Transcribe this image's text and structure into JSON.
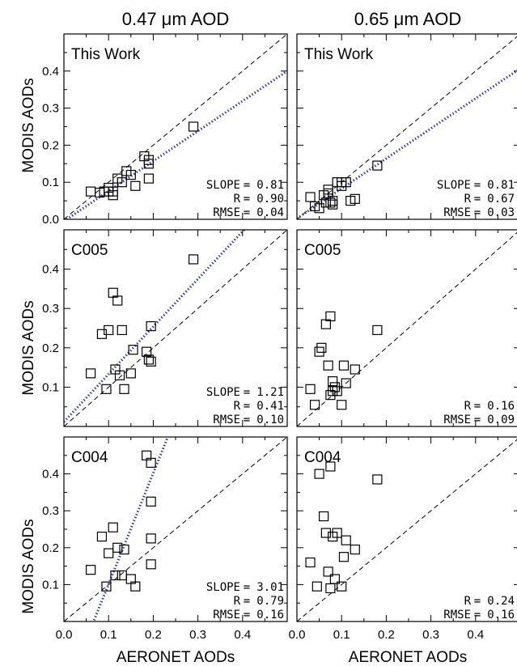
{
  "figure": {
    "column_titles": [
      "0.47 μm AOD",
      "0.65 μm AOD"
    ],
    "ylabel": "MODIS AODs",
    "xlabel": "AERONET AODs",
    "x_ticks": [
      "0.0",
      "0.1",
      "0.2",
      "0.3",
      "0.4"
    ],
    "y_ticks": [
      "0.0",
      "0.1",
      "0.2",
      "0.3",
      "0.4"
    ],
    "colors": {
      "fit_line": "#3a3aa6",
      "one_to_one": "#000000",
      "marker": "#000000"
    }
  },
  "chart_data": [
    {
      "type": "scatter",
      "panel": "This Work",
      "column": "0.47 μm AOD",
      "xlim": [
        0.0,
        0.5
      ],
      "ylim": [
        0.0,
        0.5
      ],
      "y_ticks": [
        0.0,
        0.1,
        0.2,
        0.3,
        0.4
      ],
      "stats": [
        {
          "label": "SLOPE",
          "value": "0.81"
        },
        {
          "label": "R",
          "value": "0.90"
        },
        {
          "label": "RMSE",
          "value": "0.04"
        }
      ],
      "fit": {
        "slope": 0.81,
        "intercept": -0.005
      },
      "x": [
        0.06,
        0.08,
        0.09,
        0.1,
        0.1,
        0.11,
        0.11,
        0.12,
        0.13,
        0.14,
        0.15,
        0.16,
        0.18,
        0.19,
        0.19,
        0.19,
        0.29
      ],
      "y": [
        0.075,
        0.072,
        0.075,
        0.085,
        0.075,
        0.065,
        0.075,
        0.11,
        0.1,
        0.13,
        0.12,
        0.09,
        0.17,
        0.16,
        0.15,
        0.11,
        0.25
      ]
    },
    {
      "type": "scatter",
      "panel": "This Work",
      "column": "0.65 μm AOD",
      "xlim": [
        0.0,
        0.5
      ],
      "ylim": [
        0.0,
        0.5
      ],
      "y_ticks": [
        0.0,
        0.1,
        0.2,
        0.3,
        0.4
      ],
      "stats": [
        {
          "label": "SLOPE",
          "value": "0.81"
        },
        {
          "label": "R",
          "value": "0.67"
        },
        {
          "label": "RMSE",
          "value": "0.03"
        }
      ],
      "fit": {
        "slope": 0.81,
        "intercept": 0.002
      },
      "x": [
        0.03,
        0.04,
        0.05,
        0.06,
        0.065,
        0.07,
        0.07,
        0.075,
        0.08,
        0.08,
        0.09,
        0.1,
        0.1,
        0.11,
        0.12,
        0.13,
        0.18
      ],
      "y": [
        0.06,
        0.035,
        0.03,
        0.065,
        0.045,
        0.07,
        0.08,
        0.045,
        0.04,
        0.05,
        0.1,
        0.09,
        0.1,
        0.1,
        0.05,
        0.055,
        0.145
      ]
    },
    {
      "type": "scatter",
      "panel": "C005",
      "column": "0.47 μm AOD",
      "xlim": [
        0.0,
        0.5
      ],
      "ylim": [
        0.0,
        0.5
      ],
      "y_ticks": [
        0.1,
        0.2,
        0.3,
        0.4
      ],
      "stats": [
        {
          "label": "SLOPE",
          "value": "1.21"
        },
        {
          "label": "R",
          "value": "0.41"
        },
        {
          "label": "RMSE",
          "value": "0.10"
        }
      ],
      "fit": {
        "slope": 1.21,
        "intercept": 0.012
      },
      "x": [
        0.06,
        0.085,
        0.095,
        0.1,
        0.11,
        0.115,
        0.12,
        0.125,
        0.13,
        0.135,
        0.15,
        0.155,
        0.185,
        0.19,
        0.195,
        0.195,
        0.29
      ],
      "y": [
        0.135,
        0.235,
        0.095,
        0.245,
        0.34,
        0.145,
        0.32,
        0.13,
        0.245,
        0.095,
        0.135,
        0.195,
        0.19,
        0.17,
        0.255,
        0.165,
        0.425
      ]
    },
    {
      "type": "scatter",
      "panel": "C005",
      "column": "0.65 μm AOD",
      "xlim": [
        0.0,
        0.5
      ],
      "ylim": [
        0.0,
        0.5
      ],
      "y_ticks": [
        0.1,
        0.2,
        0.3,
        0.4
      ],
      "stats": [
        {
          "label": "R",
          "value": "0.16"
        },
        {
          "label": "RMSE",
          "value": "0.09"
        }
      ],
      "fit": null,
      "x": [
        0.03,
        0.04,
        0.05,
        0.055,
        0.065,
        0.07,
        0.075,
        0.075,
        0.08,
        0.08,
        0.085,
        0.09,
        0.1,
        0.105,
        0.11,
        0.13,
        0.18
      ],
      "y": [
        0.095,
        0.055,
        0.19,
        0.2,
        0.26,
        0.155,
        0.08,
        0.28,
        0.09,
        0.115,
        0.1,
        0.09,
        0.055,
        0.155,
        0.11,
        0.145,
        0.245
      ]
    },
    {
      "type": "scatter",
      "panel": "C004",
      "column": "0.47 μm AOD",
      "xlim": [
        0.0,
        0.5
      ],
      "ylim": [
        0.0,
        0.5
      ],
      "y_ticks": [
        0.1,
        0.2,
        0.3,
        0.4
      ],
      "stats": [
        {
          "label": "SLOPE",
          "value": "3.01"
        },
        {
          "label": "R",
          "value": "0.79"
        },
        {
          "label": "RMSE",
          "value": "0.16"
        }
      ],
      "fit": {
        "slope": 3.01,
        "intercept": -0.2
      },
      "x": [
        0.06,
        0.085,
        0.095,
        0.1,
        0.11,
        0.115,
        0.12,
        0.13,
        0.135,
        0.15,
        0.16,
        0.185,
        0.195,
        0.195,
        0.195,
        0.195
      ],
      "y": [
        0.14,
        0.23,
        0.095,
        0.185,
        0.255,
        0.125,
        0.2,
        0.125,
        0.195,
        0.115,
        0.095,
        0.45,
        0.43,
        0.325,
        0.225,
        0.155
      ]
    },
    {
      "type": "scatter",
      "panel": "C004",
      "column": "0.65 μm AOD",
      "xlim": [
        0.0,
        0.5
      ],
      "ylim": [
        0.0,
        0.5
      ],
      "y_ticks": [
        0.1,
        0.2,
        0.3,
        0.4
      ],
      "stats": [
        {
          "label": "R",
          "value": "0.24"
        },
        {
          "label": "RMSE",
          "value": "0.16"
        }
      ],
      "fit": null,
      "x": [
        0.03,
        0.045,
        0.05,
        0.06,
        0.065,
        0.07,
        0.075,
        0.075,
        0.08,
        0.085,
        0.09,
        0.1,
        0.105,
        0.11,
        0.13,
        0.18
      ],
      "y": [
        0.16,
        0.095,
        0.4,
        0.285,
        0.24,
        0.135,
        0.42,
        0.09,
        0.23,
        0.115,
        0.24,
        0.095,
        0.175,
        0.22,
        0.195,
        0.385
      ]
    }
  ]
}
